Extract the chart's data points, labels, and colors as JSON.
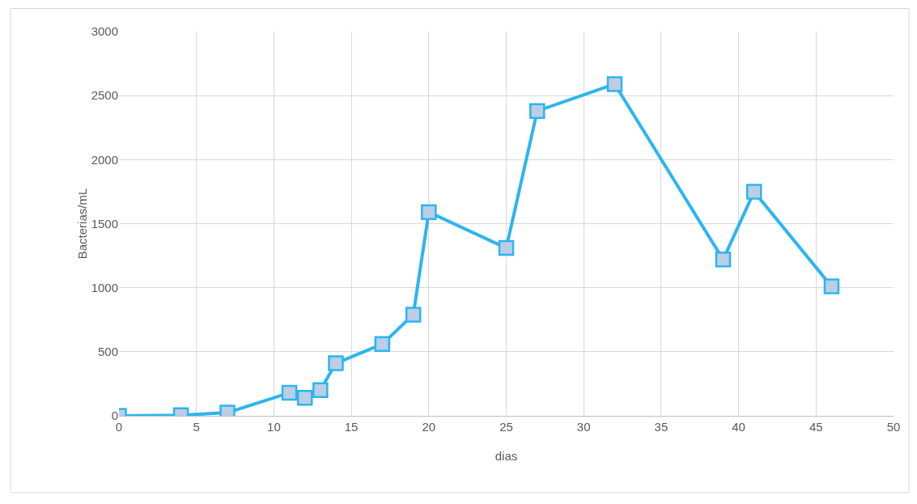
{
  "chart_data": {
    "type": "line",
    "xlabel": "dias",
    "ylabel": "Bacterias/mL",
    "x": [
      0,
      4,
      7,
      11,
      12,
      13,
      14,
      17,
      19,
      20,
      25,
      27,
      32,
      39,
      41,
      46
    ],
    "series": [
      {
        "color": "#2cb5f0",
        "values": [
          0,
          5,
          25,
          180,
          140,
          200,
          410,
          560,
          790,
          1590,
          1310,
          2380,
          2590,
          1220,
          1750,
          1010
        ]
      }
    ],
    "xlim": [
      0,
      50
    ],
    "xticks": [
      0,
      5,
      10,
      15,
      20,
      25,
      30,
      35,
      40,
      45,
      50
    ],
    "ylim": [
      0,
      3000
    ],
    "yticks": [
      0,
      500,
      1000,
      1500,
      2000,
      2500,
      3000
    ],
    "grid": true,
    "marker": "square",
    "line_style": "solid",
    "legend": false
  }
}
